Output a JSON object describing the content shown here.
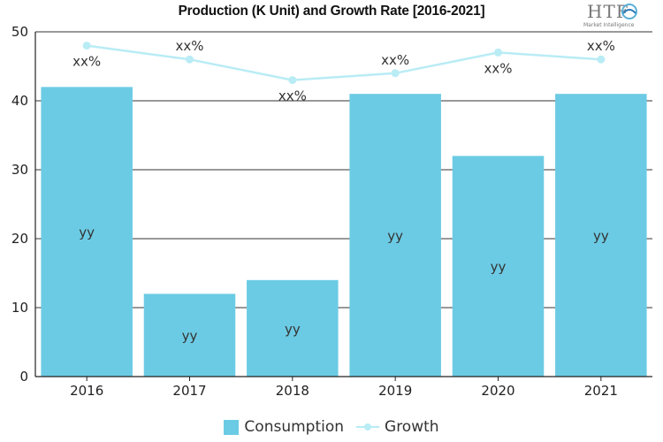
{
  "header": {
    "title": "Production (K Unit) and Growth Rate [2016-2021]",
    "logo_text": "HTF",
    "logo_tagline": "Market Intelligence"
  },
  "colors": {
    "bar": "#6ccbe4",
    "line": "#b9ecf5",
    "grid": "#333333"
  },
  "chart_data": {
    "type": "bar",
    "categories": [
      "2016",
      "2017",
      "2018",
      "2019",
      "2020",
      "2021"
    ],
    "series": [
      {
        "name": "Consumption",
        "type": "bar",
        "values": [
          42,
          12,
          14,
          41,
          32,
          41
        ],
        "labels": [
          "yy",
          "yy",
          "yy",
          "yy",
          "yy",
          "yy"
        ]
      },
      {
        "name": "Growth",
        "type": "line",
        "values": [
          48,
          46,
          43,
          44,
          47,
          46
        ],
        "labels": [
          "xx%",
          "xx%",
          "xx%",
          "xx%",
          "xx%",
          "xx%"
        ]
      }
    ],
    "title": "Production (K Unit) and Growth Rate [2016-2021]",
    "xlabel": "",
    "ylabel": "",
    "ylim": [
      0,
      50
    ],
    "yticks": [
      "0",
      "10",
      "20",
      "30",
      "40",
      "50"
    ],
    "grid": true,
    "legend_position": "bottom"
  }
}
